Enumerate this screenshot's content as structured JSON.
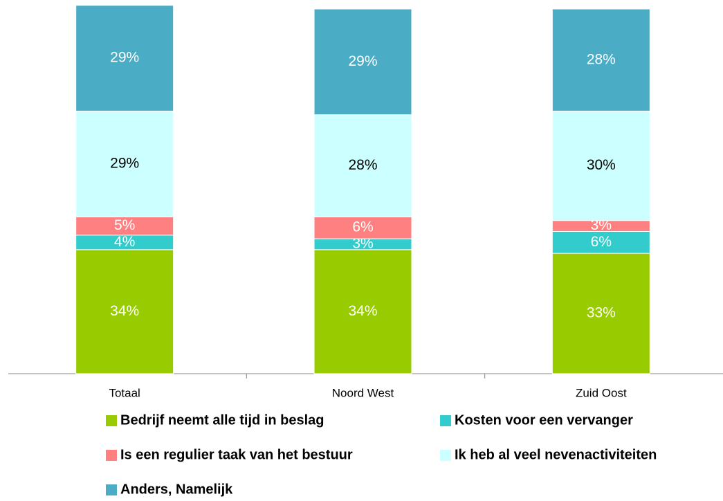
{
  "chart_data": {
    "type": "stacked_bar",
    "categories": [
      "Totaal",
      "Noord West",
      "Zuid Oost"
    ],
    "series": [
      {
        "name": "Bedrijf neemt alle tijd in beslag",
        "color": "#99cc00",
        "values": [
          34,
          34,
          33
        ],
        "value_labels": [
          "34%",
          "34%",
          "33%"
        ]
      },
      {
        "name": "Kosten voor een vervanger",
        "color": "#33cccc",
        "values": [
          4,
          3,
          6
        ],
        "value_labels": [
          "4%",
          "3%",
          "6%"
        ]
      },
      {
        "name": "Is een regulier taak van het bestuur",
        "color": "#ff8080",
        "values": [
          5,
          6,
          3
        ],
        "value_labels": [
          "5%",
          "6%",
          "3%"
        ]
      },
      {
        "name": "Ik heb al veel nevenactiviteiten",
        "color": "#ccffff",
        "values": [
          29,
          28,
          30
        ],
        "value_labels": [
          "29%",
          "28%",
          "30%"
        ]
      },
      {
        "name": "Anders, Namelijk",
        "color": "#4bacc6",
        "values": [
          29,
          29,
          28
        ],
        "value_labels": [
          "29%",
          "29%",
          "28%"
        ]
      }
    ]
  }
}
